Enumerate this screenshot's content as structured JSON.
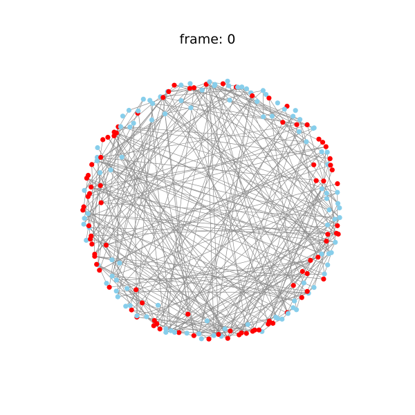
{
  "figure": {
    "title_label": "frame:",
    "title_value": "0"
  },
  "graph": {
    "node_count": 200,
    "edge_count": 300,
    "edge_color": "#8c8c8c",
    "node_colors": {
      "infected": "#ff0000",
      "susceptible": "#87ceeb"
    },
    "infected_share": 0.5
  }
}
